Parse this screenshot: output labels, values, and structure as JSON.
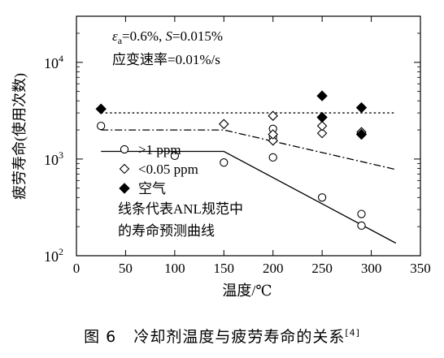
{
  "chart_data": {
    "type": "scatter",
    "title": "",
    "xlabel": "温度/℃",
    "ylabel": "疲劳寿命(使用次数)",
    "xlim": [
      0,
      350
    ],
    "ylim": [
      100,
      30000
    ],
    "yscale": "log",
    "x_ticks": [
      "0",
      "50",
      "100",
      "150",
      "200",
      "250",
      "300",
      "350"
    ],
    "y_ticks": [
      {
        "base": "10",
        "exp": "2",
        "value": 100
      },
      {
        "base": "10",
        "exp": "3",
        "value": 1000
      },
      {
        "base": "10",
        "exp": "4",
        "value": 10000
      }
    ],
    "conditions": {
      "line1": [
        "ε",
        "a",
        "=0.6%, ",
        "S",
        "=0.015%"
      ],
      "line2": "应变速率=0.01%/s"
    },
    "series": [
      {
        "name": ">1 ppm",
        "marker": "open-circle",
        "points": [
          [
            25,
            2200
          ],
          [
            100,
            1080
          ],
          [
            150,
            920
          ],
          [
            200,
            1040
          ],
          [
            200,
            1700
          ],
          [
            200,
            2050
          ],
          [
            250,
            400
          ],
          [
            290,
            270
          ],
          [
            290,
            205
          ]
        ]
      },
      {
        "name": "<0.05 ppm",
        "marker": "open-diamond",
        "points": [
          [
            150,
            2300
          ],
          [
            200,
            1550
          ],
          [
            200,
            1800
          ],
          [
            200,
            2800
          ],
          [
            250,
            1850
          ],
          [
            250,
            2200
          ],
          [
            290,
            1900
          ]
        ]
      },
      {
        "name": "空气",
        "marker": "filled-diamond",
        "points": [
          [
            25,
            3300
          ],
          [
            250,
            4500
          ],
          [
            250,
            2700
          ],
          [
            290,
            3400
          ],
          [
            290,
            1800
          ]
        ]
      }
    ],
    "lines": [
      {
        "style": "dotted",
        "points": [
          [
            25,
            3000
          ],
          [
            325,
            3000
          ]
        ]
      },
      {
        "style": "dash-dot",
        "points": [
          [
            25,
            2000
          ],
          [
            150,
            2000
          ],
          [
            325,
            780
          ]
        ]
      },
      {
        "style": "solid",
        "points": [
          [
            25,
            1200
          ],
          [
            150,
            1200
          ],
          [
            325,
            135
          ]
        ]
      }
    ],
    "legend": {
      "position": "center-left",
      "entries": [
        ">1 ppm",
        "<0.05 ppm",
        "空气"
      ],
      "note_line1": "线条代表ANL规范中",
      "note_line2": "的寿命预测曲线"
    },
    "grid": false
  },
  "caption": {
    "figure_no": "图 6",
    "title": "冷却剂温度与疲劳寿命的关系",
    "ref": "[4]"
  }
}
